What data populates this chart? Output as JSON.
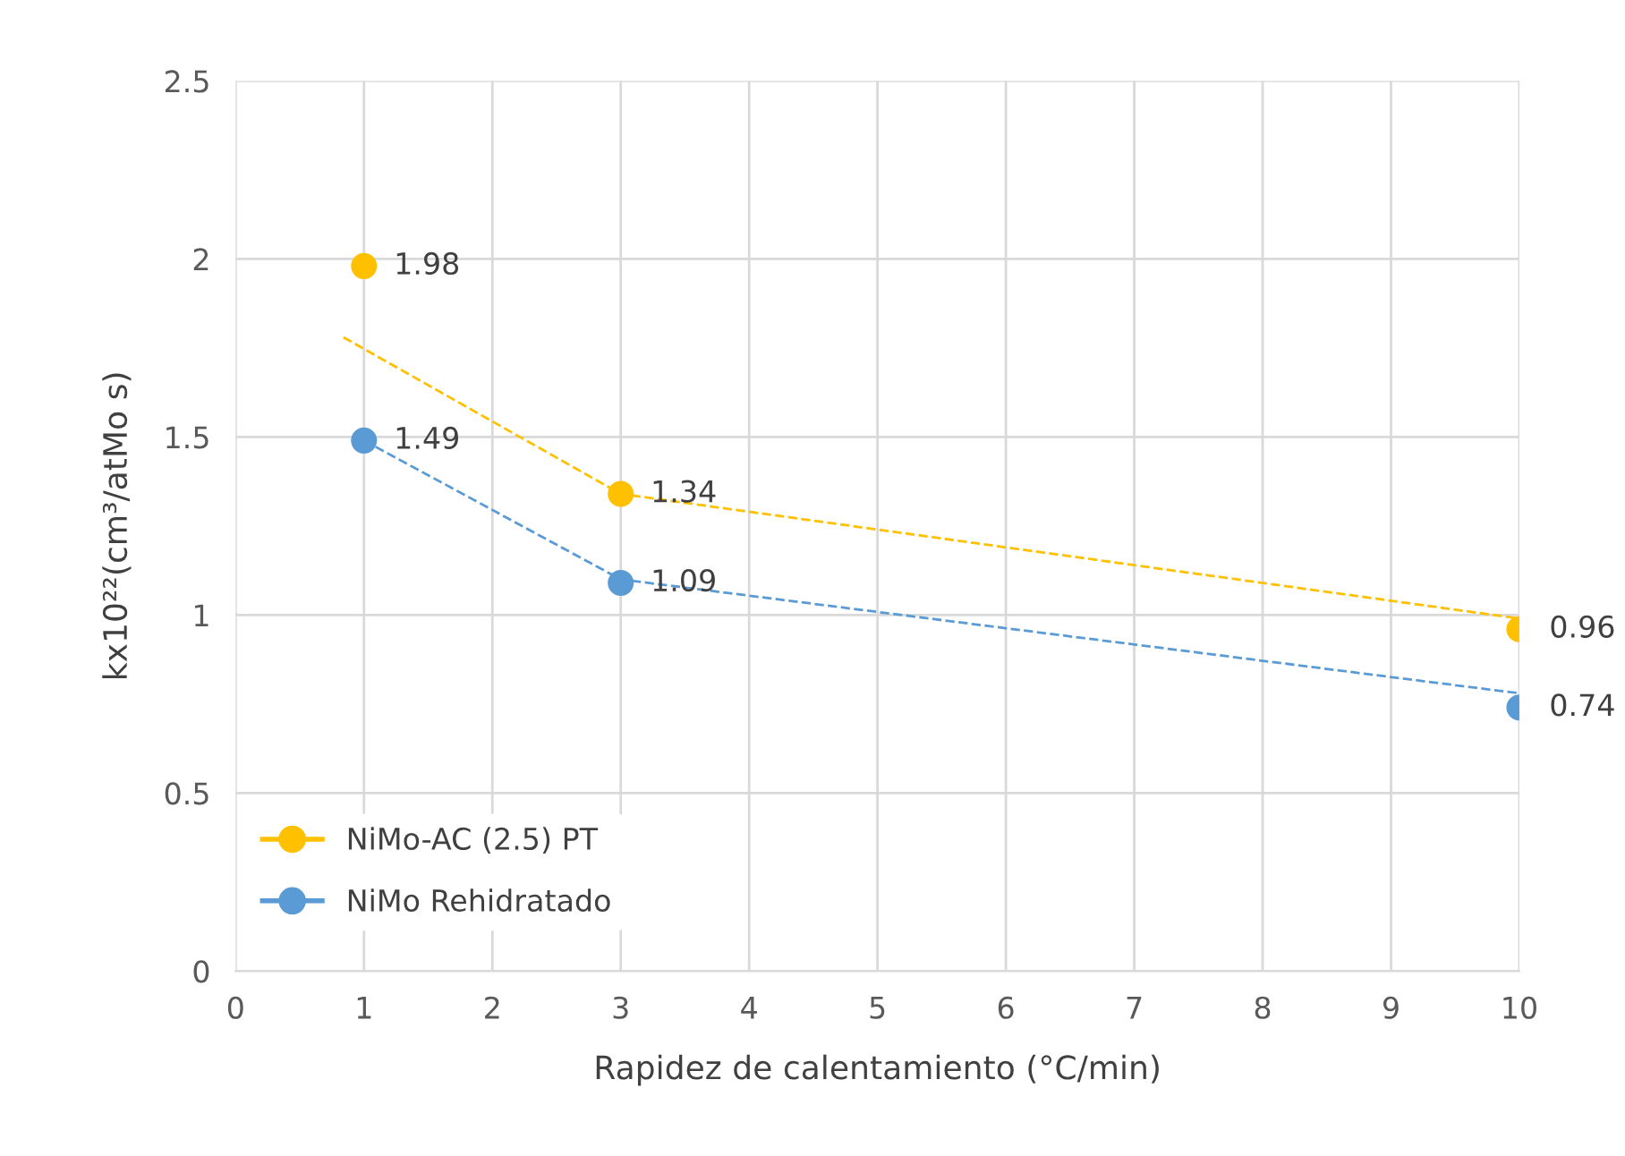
{
  "chart_data": {
    "type": "scatter",
    "xlabel": "Rapidez de calentamiento (°C/min)",
    "ylabel": "kx10²²(cm³/atMo s)",
    "xlim": [
      0,
      10
    ],
    "xticks": [
      0,
      1,
      2,
      3,
      4,
      5,
      6,
      7,
      8,
      9,
      10
    ],
    "ylim": [
      0,
      2.5
    ],
    "yticks": [
      0,
      0.5,
      1,
      1.5,
      2,
      2.5
    ],
    "grid": true,
    "legend": "bottom left",
    "marker": "circle",
    "series": [
      {
        "name": "NiMo-AC (2.5) PT",
        "color": "#ffc000",
        "x": [
          1,
          3,
          10
        ],
        "values": [
          1.98,
          1.34,
          0.96
        ],
        "data_labels": true
      },
      {
        "name": "NiMo Rehidratado",
        "color": "#5b9bd5",
        "x": [
          1,
          3,
          10
        ],
        "values": [
          1.49,
          1.09,
          0.74
        ],
        "data_labels": true
      },
      {
        "type": "line",
        "color": "#ffc000",
        "line_style": "dashed",
        "marker": "none",
        "x": [
          0.84,
          3,
          10
        ],
        "values": [
          1.78,
          1.34,
          0.99
        ]
      },
      {
        "type": "line",
        "color": "#5b9bd5",
        "line_style": "dashed",
        "marker": "none",
        "x": [
          1,
          3,
          10
        ],
        "values": [
          1.49,
          1.1,
          0.78
        ]
      }
    ]
  }
}
